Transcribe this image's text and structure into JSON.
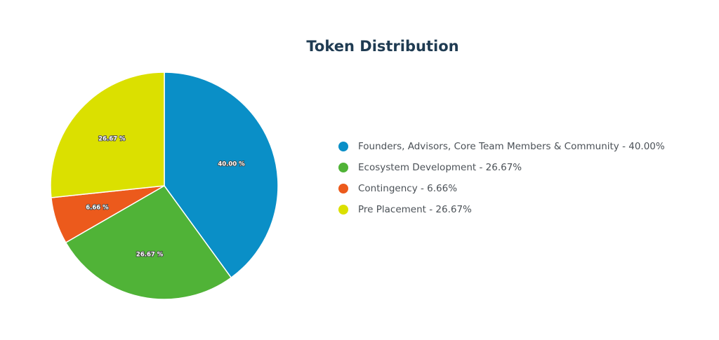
{
  "chart_data": {
    "type": "pie",
    "title": "Token Distribution",
    "series": [
      {
        "name": "Founders, Advisors, Core Team Members & Community",
        "value": 40.0,
        "color": "#0a8fc7",
        "slice_label": "40.00 %",
        "legend_label": "Founders, Advisors, Core Team Members & Community - 40.00%"
      },
      {
        "name": "Ecosystem Development",
        "value": 26.67,
        "color": "#50b337",
        "slice_label": "26.67 %",
        "legend_label": "Ecosystem Development - 26.67%"
      },
      {
        "name": "Contingency",
        "value": 6.66,
        "color": "#ec5a1c",
        "slice_label": "6.66 %",
        "legend_label": "Contingency - 6.66%"
      },
      {
        "name": "Pre Placement",
        "value": 26.67,
        "color": "#dbe000",
        "slice_label": "26.67 %",
        "legend_label": "Pre Placement - 26.67%"
      }
    ],
    "start_angle": "top",
    "direction": "clockwise",
    "legend_position": "right"
  }
}
